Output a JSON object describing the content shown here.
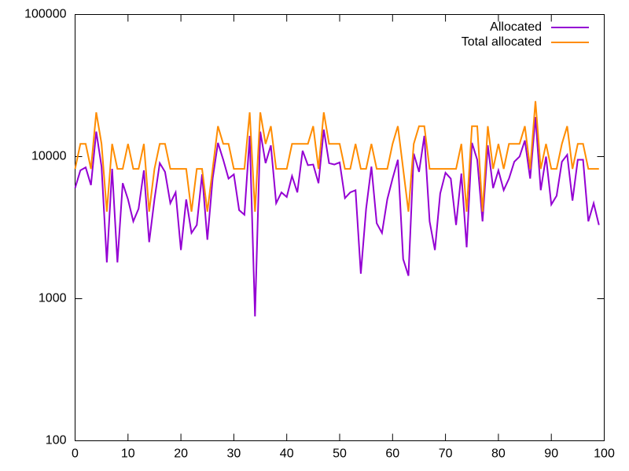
{
  "chart_data": {
    "type": "line",
    "x": [
      0,
      1,
      2,
      3,
      4,
      5,
      6,
      7,
      8,
      9,
      10,
      11,
      12,
      13,
      14,
      15,
      16,
      17,
      18,
      19,
      20,
      21,
      22,
      23,
      24,
      25,
      26,
      27,
      28,
      29,
      30,
      31,
      32,
      33,
      34,
      35,
      36,
      37,
      38,
      39,
      40,
      41,
      42,
      43,
      44,
      45,
      46,
      47,
      48,
      49,
      50,
      51,
      52,
      53,
      54,
      55,
      56,
      57,
      58,
      59,
      60,
      61,
      62,
      63,
      64,
      65,
      66,
      67,
      68,
      69,
      70,
      71,
      72,
      73,
      74,
      75,
      76,
      77,
      78,
      79,
      80,
      81,
      82,
      83,
      84,
      85,
      86,
      87,
      88,
      89,
      90,
      91,
      92,
      93,
      94,
      95,
      96,
      97,
      98,
      99
    ],
    "series": [
      {
        "name": "Allocated",
        "color": "#9400d3",
        "values": [
          6000,
          8000,
          8400,
          6300,
          15000,
          8500,
          1800,
          8200,
          1800,
          6500,
          5000,
          3500,
          4300,
          8000,
          2500,
          5000,
          9000,
          7800,
          4700,
          5600,
          2200,
          5000,
          2900,
          3300,
          7500,
          2600,
          7000,
          12500,
          9500,
          7000,
          7500,
          4200,
          3900,
          14000,
          750,
          15000,
          9000,
          12000,
          4700,
          5600,
          5200,
          7300,
          5600,
          11000,
          8700,
          8800,
          6500,
          15500,
          9000,
          8800,
          9100,
          5100,
          5600,
          5800,
          1500,
          4300,
          8500,
          3400,
          2900,
          5000,
          7000,
          9500,
          1900,
          1450,
          10500,
          7800,
          14000,
          3500,
          2200,
          5500,
          7700,
          7000,
          3300,
          7600,
          2300,
          12500,
          9500,
          3500,
          12000,
          6000,
          8000,
          5800,
          7000,
          9200,
          10000,
          13000,
          7000,
          19000,
          5800,
          10000,
          4600,
          5300,
          9200,
          10300,
          4900,
          9500,
          9500,
          3500,
          4700,
          3300
        ]
      },
      {
        "name": "Total allocated",
        "color": "#ff8c00",
        "values": [
          8192,
          12288,
          12288,
          8192,
          20480,
          12288,
          4096,
          12288,
          8192,
          8192,
          12288,
          8192,
          8192,
          12288,
          4096,
          8192,
          12288,
          12288,
          8192,
          8192,
          8192,
          8192,
          4096,
          8192,
          8192,
          4096,
          8192,
          16384,
          12288,
          12288,
          8192,
          8192,
          8192,
          20480,
          4096,
          20480,
          12288,
          16384,
          8192,
          8192,
          8192,
          12288,
          12288,
          12288,
          12288,
          16384,
          8192,
          20480,
          12288,
          12288,
          12288,
          8192,
          8192,
          12288,
          8192,
          8192,
          12288,
          8192,
          8192,
          8192,
          12288,
          16384,
          8192,
          4096,
          12288,
          16384,
          16384,
          8192,
          8192,
          8192,
          8192,
          8192,
          8192,
          12288,
          4096,
          16384,
          16384,
          4096,
          16384,
          8192,
          12288,
          8192,
          12288,
          12288,
          12288,
          16384,
          8192,
          24576,
          8192,
          12288,
          8192,
          8192,
          12288,
          16384,
          8192,
          12288,
          12288,
          8192,
          8192,
          8192
        ]
      }
    ],
    "xlim": [
      0,
      100
    ],
    "xticks": [
      0,
      10,
      20,
      30,
      40,
      50,
      60,
      70,
      80,
      90,
      100
    ],
    "ylim": [
      100,
      100000
    ],
    "yticks": [
      100,
      1000,
      10000,
      100000
    ],
    "log_y": true,
    "grid": false,
    "legend": "top-right"
  }
}
